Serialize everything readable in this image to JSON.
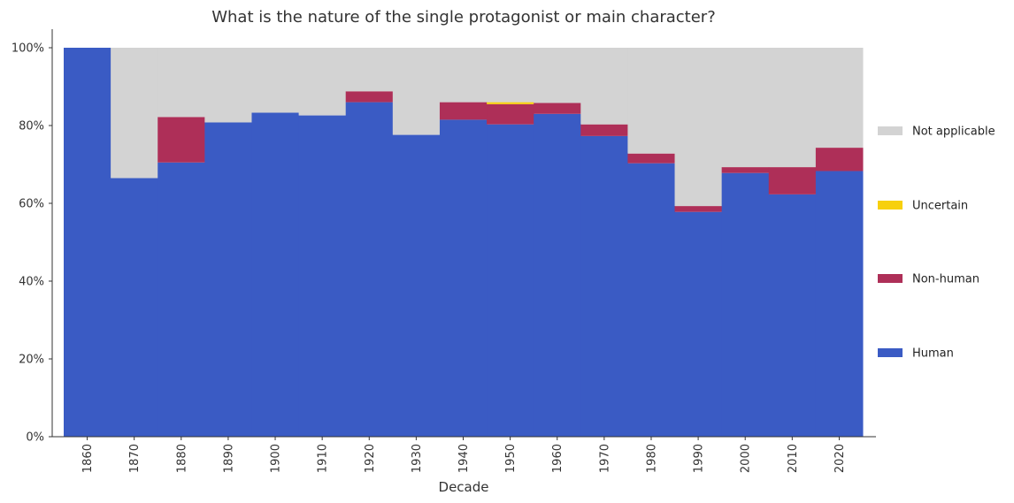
{
  "chart_data": {
    "type": "bar",
    "stacked": true,
    "normalized": true,
    "title": "What is the nature of the single protagonist or main character?",
    "xlabel": "Decade",
    "ylabel": "",
    "ylim": [
      0,
      1
    ],
    "yticks": [
      "0%",
      "20%",
      "40%",
      "60%",
      "80%",
      "100%"
    ],
    "legend_position": "right",
    "categories": [
      "1860",
      "1870",
      "1880",
      "1890",
      "1900",
      "1910",
      "1920",
      "1930",
      "1940",
      "1950",
      "1960",
      "1970",
      "1980",
      "1990",
      "2000",
      "2010",
      "2020"
    ],
    "series": [
      {
        "name": "Human",
        "color": "#3a5bc4",
        "values": [
          1.0,
          0.665,
          0.705,
          0.808,
          0.833,
          0.826,
          0.86,
          0.776,
          0.815,
          0.803,
          0.83,
          0.773,
          0.703,
          0.578,
          0.678,
          0.623,
          0.683
        ]
      },
      {
        "name": "Non-human",
        "color": "#ae2f58",
        "values": [
          0,
          0,
          0.117,
          0,
          0,
          0,
          0.028,
          0,
          0.045,
          0.052,
          0.028,
          0.03,
          0.025,
          0.015,
          0.015,
          0.07,
          0.06
        ]
      },
      {
        "name": "Uncertain",
        "color": "#f7d00e",
        "values": [
          0,
          0,
          0,
          0,
          0,
          0,
          0,
          0,
          0,
          0.005,
          0,
          0,
          0,
          0,
          0,
          0,
          0
        ]
      },
      {
        "name": "Not applicable",
        "color": "#d3d3d3",
        "values": [
          0,
          0.335,
          0.178,
          0.192,
          0.167,
          0.174,
          0.112,
          0.224,
          0.14,
          0.14,
          0.142,
          0.197,
          0.272,
          0.407,
          0.307,
          0.307,
          0.257
        ]
      }
    ],
    "legend_order": [
      "Not applicable",
      "Uncertain",
      "Non-human",
      "Human"
    ]
  }
}
